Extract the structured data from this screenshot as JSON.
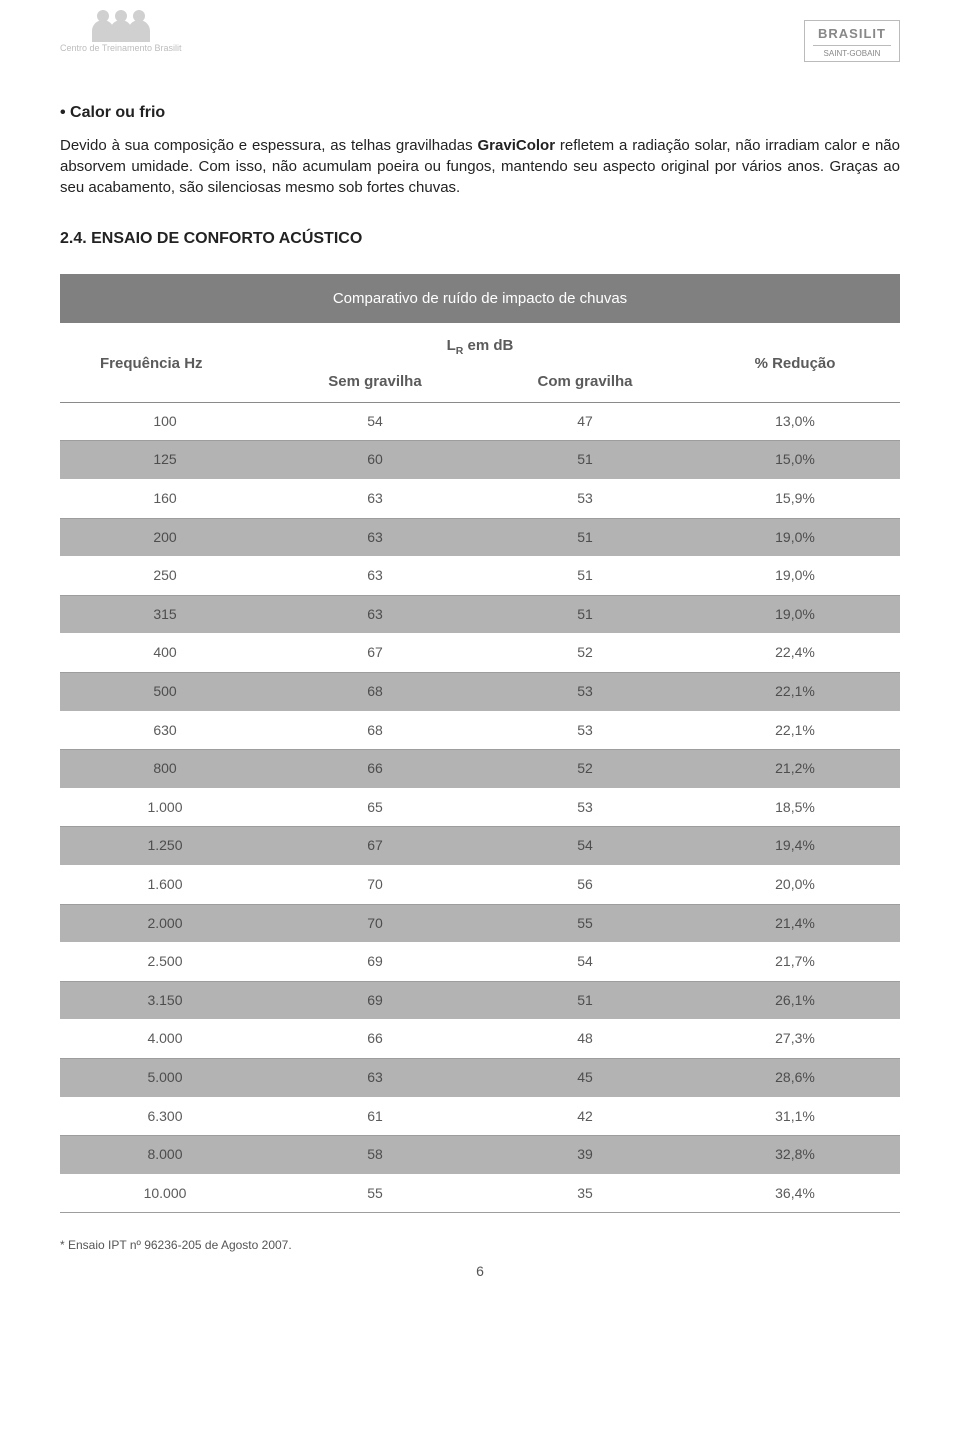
{
  "header": {
    "logo_left_caption": "Centro de Treinamento Brasilit",
    "logo_right_brand": "BRASILIT",
    "logo_right_sub": "SAINT-GOBAIN"
  },
  "section1": {
    "title": "Calor ou frio",
    "body_before_bold": "Devido à sua composição e espessura, as telhas gravilhadas ",
    "body_bold": "GraviColor",
    "body_after_bold": " refletem a radiação solar, não irradiam calor e não absorvem umidade. Com isso, não acumulam poeira ou fungos, mantendo seu aspecto original por vários anos. Graças ao seu acabamento, são silenciosas mesmo sob fortes chuvas."
  },
  "section2": {
    "heading": "2.4. ENSAIO DE CONFORTO ACÚSTICO"
  },
  "table": {
    "title": "Comparativo de ruído de impacto de chuvas",
    "col_freq": "Frequência Hz",
    "col_lr": "L",
    "col_lr_sub": "R",
    "col_lr_unit": " em dB",
    "col_sem": "Sem gravilha",
    "col_com": "Com gravilha",
    "col_red": "% Redução",
    "rows": [
      {
        "hz": "100",
        "sem": "54",
        "com": "47",
        "red": "13,0%"
      },
      {
        "hz": "125",
        "sem": "60",
        "com": "51",
        "red": "15,0%"
      },
      {
        "hz": "160",
        "sem": "63",
        "com": "53",
        "red": "15,9%"
      },
      {
        "hz": "200",
        "sem": "63",
        "com": "51",
        "red": "19,0%"
      },
      {
        "hz": "250",
        "sem": "63",
        "com": "51",
        "red": "19,0%"
      },
      {
        "hz": "315",
        "sem": "63",
        "com": "51",
        "red": "19,0%"
      },
      {
        "hz": "400",
        "sem": "67",
        "com": "52",
        "red": "22,4%"
      },
      {
        "hz": "500",
        "sem": "68",
        "com": "53",
        "red": "22,1%"
      },
      {
        "hz": "630",
        "sem": "68",
        "com": "53",
        "red": "22,1%"
      },
      {
        "hz": "800",
        "sem": "66",
        "com": "52",
        "red": "21,2%"
      },
      {
        "hz": "1.000",
        "sem": "65",
        "com": "53",
        "red": "18,5%"
      },
      {
        "hz": "1.250",
        "sem": "67",
        "com": "54",
        "red": "19,4%"
      },
      {
        "hz": "1.600",
        "sem": "70",
        "com": "56",
        "red": "20,0%"
      },
      {
        "hz": "2.000",
        "sem": "70",
        "com": "55",
        "red": "21,4%"
      },
      {
        "hz": "2.500",
        "sem": "69",
        "com": "54",
        "red": "21,7%"
      },
      {
        "hz": "3.150",
        "sem": "69",
        "com": "51",
        "red": "26,1%"
      },
      {
        "hz": "4.000",
        "sem": "66",
        "com": "48",
        "red": "27,3%"
      },
      {
        "hz": "5.000",
        "sem": "63",
        "com": "45",
        "red": "28,6%"
      },
      {
        "hz": "6.300",
        "sem": "61",
        "com": "42",
        "red": "31,1%"
      },
      {
        "hz": "8.000",
        "sem": "58",
        "com": "39",
        "red": "32,8%"
      },
      {
        "hz": "10.000",
        "sem": "55",
        "com": "35",
        "red": "36,4%"
      }
    ],
    "row_shade_color": "#b3b3b3",
    "row_plain_color": "#ffffff",
    "header_bg": "#808080",
    "header_text": "#ffffff",
    "body_text_color": "#5b5b5b",
    "border_color": "#9d9d9d"
  },
  "footnote": "* Ensaio IPT nº 96236-205 de Agosto 2007.",
  "page_number": "6"
}
